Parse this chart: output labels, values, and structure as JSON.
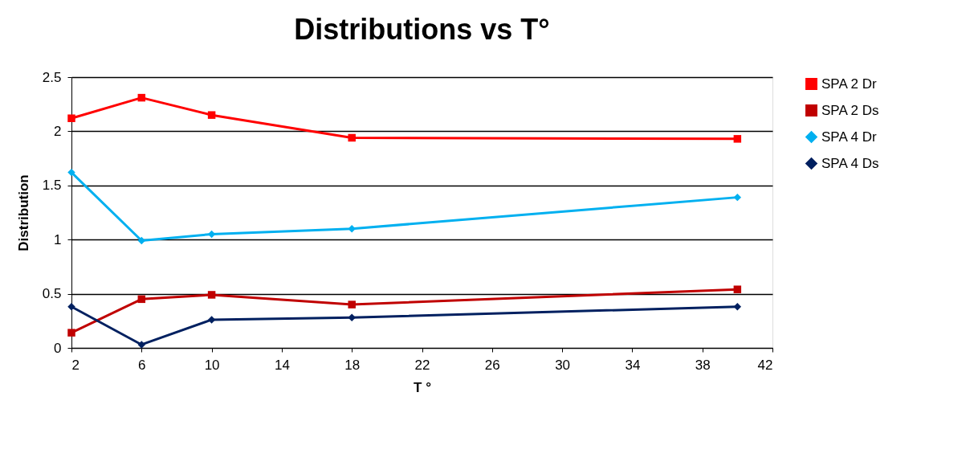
{
  "chart_data": {
    "type": "line",
    "title": "Distributions vs T°",
    "xlabel": "T °",
    "ylabel": "Distribution",
    "x": [
      2,
      6,
      10,
      18,
      40
    ],
    "series": [
      {
        "name": "SPA 2 Dr",
        "color": "#ff0000",
        "marker": "square",
        "values": [
          2.12,
          2.31,
          2.15,
          1.94,
          1.93
        ]
      },
      {
        "name": "SPA 2 Ds",
        "color": "#c00000",
        "marker": "square",
        "values": [
          0.14,
          0.45,
          0.49,
          0.4,
          0.54
        ]
      },
      {
        "name": "SPA 4 Dr",
        "color": "#00b0f0",
        "marker": "diamond",
        "values": [
          1.62,
          0.99,
          1.05,
          1.1,
          1.39
        ]
      },
      {
        "name": "SPA 4 Ds",
        "color": "#002060",
        "marker": "diamond",
        "values": [
          0.38,
          0.03,
          0.26,
          0.28,
          0.38
        ]
      }
    ],
    "xlim": [
      2,
      42
    ],
    "xticks": [
      2,
      6,
      10,
      14,
      18,
      22,
      26,
      30,
      34,
      38,
      42
    ],
    "ylim": [
      0,
      2.5
    ],
    "yticks": [
      0,
      0.5,
      1,
      1.5,
      2,
      2.5
    ],
    "grid": "y",
    "legend": "right",
    "line_style": "solid"
  }
}
